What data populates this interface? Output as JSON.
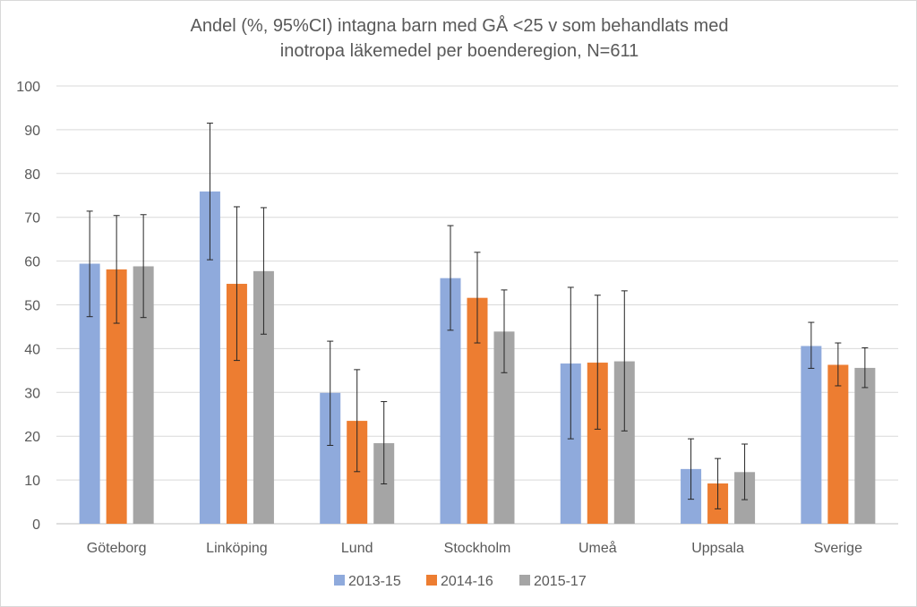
{
  "chart_data": {
    "type": "bar",
    "title_lines": [
      "Andel (%, 95%CI) intagna barn med GÅ <25 v som behandlats med",
      "inotropa läkemedel per boenderegion, N=611"
    ],
    "xlabel": "",
    "ylabel": "",
    "ylim": [
      0,
      100
    ],
    "ytick_step": 10,
    "grid": true,
    "legend_position": "bottom",
    "categories": [
      "Göteborg",
      "Linköping",
      "Lund",
      "Stockholm",
      "Umeå",
      "Uppsala",
      "Sverige"
    ],
    "series": [
      {
        "name": "2013-15",
        "color": "#8faadc",
        "values": [
          59.4,
          75.9,
          29.9,
          56.1,
          36.6,
          12.5,
          40.6
        ],
        "ci_low": [
          47.3,
          60.3,
          17.9,
          44.2,
          19.4,
          5.6,
          35.5
        ],
        "ci_high": [
          71.4,
          91.5,
          41.7,
          68.1,
          54.0,
          19.4,
          46.0
        ]
      },
      {
        "name": "2014-16",
        "color": "#ed7d31",
        "values": [
          58.1,
          54.8,
          23.5,
          51.6,
          36.8,
          9.2,
          36.3
        ],
        "ci_low": [
          45.8,
          37.3,
          11.9,
          41.3,
          21.6,
          3.4,
          31.5
        ],
        "ci_high": [
          70.4,
          72.4,
          35.2,
          62.0,
          52.2,
          14.9,
          41.3
        ]
      },
      {
        "name": "2015-17",
        "color": "#a5a5a5",
        "values": [
          58.8,
          57.7,
          18.4,
          43.9,
          37.1,
          11.8,
          35.6
        ],
        "ci_low": [
          47.1,
          43.3,
          9.1,
          34.5,
          21.2,
          5.5,
          31.1
        ],
        "ci_high": [
          70.6,
          72.2,
          27.9,
          53.4,
          53.2,
          18.2,
          40.2
        ]
      }
    ]
  }
}
